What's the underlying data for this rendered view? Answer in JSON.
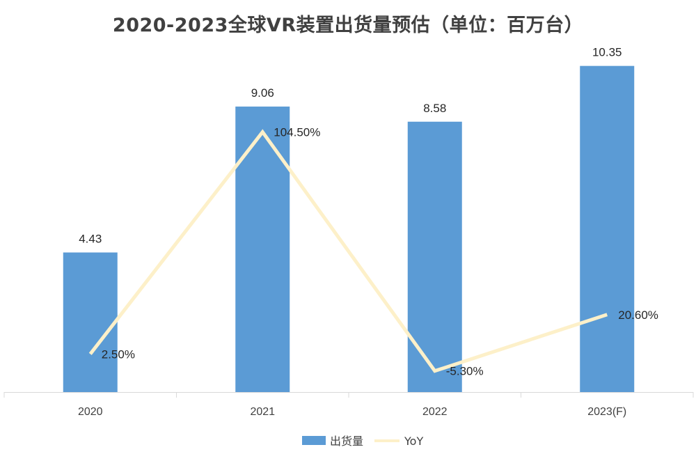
{
  "chart_data": {
    "type": "bar",
    "title": "2020-2023全球VR装置出货量预估（单位：百万台）",
    "categories": [
      "2020",
      "2021",
      "2022",
      "2023(F)"
    ],
    "series": [
      {
        "name": "出货量",
        "type": "bar",
        "values": [
          4.43,
          9.06,
          8.58,
          10.35
        ],
        "labels": [
          "4.43",
          "9.06",
          "8.58",
          "10.35"
        ],
        "color": "#5b9bd5"
      },
      {
        "name": "YoY",
        "type": "line",
        "values": [
          2.5,
          104.5,
          -5.3,
          20.6
        ],
        "labels": [
          "2.50%",
          "104.50%",
          "-5.30%",
          "20.60%"
        ],
        "color": "#fdf0c9"
      }
    ],
    "ylim": [
      0,
      12
    ],
    "y2lim": [
      -15,
      125
    ],
    "grid": false,
    "legend": "bottom"
  }
}
